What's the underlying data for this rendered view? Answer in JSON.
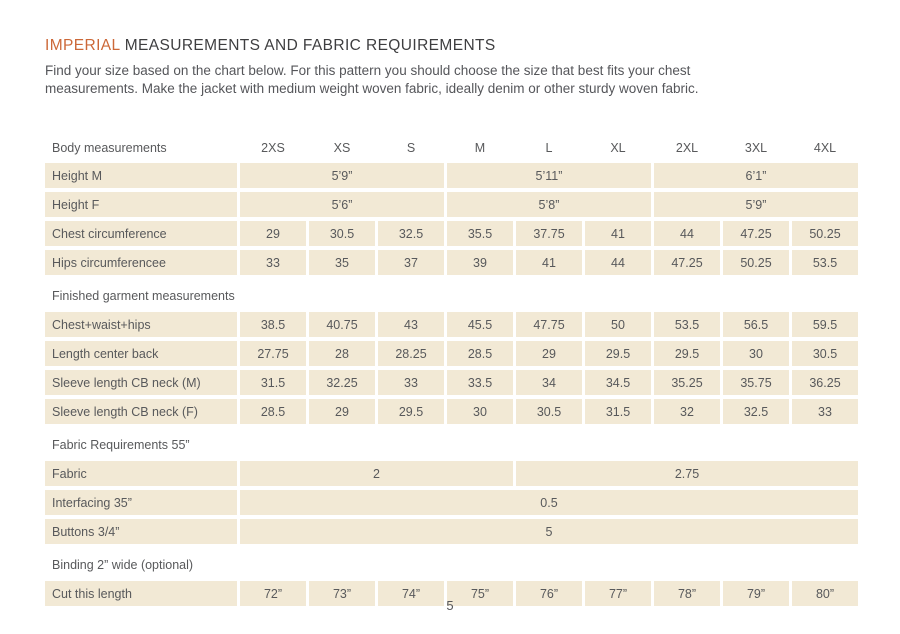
{
  "colors": {
    "accent_orange": "#cc6838",
    "cell_background": "#f2e9d5",
    "table_text": "#58595b",
    "heading_dark": "#3e3e40",
    "page_background": "#ffffff"
  },
  "header": {
    "title_highlight": "IMPERIAL",
    "title_rest": "MEASUREMENTS AND FABRIC REQUIREMENTS",
    "intro_line1": "Find your size based on the chart below. For this pattern you should choose the size that best fits your chest",
    "intro_line2": "measurements. Make the jacket with medium weight woven fabric, ideally denim or other sturdy woven fabric."
  },
  "footer": {
    "page_number": "5"
  },
  "table": {
    "corner_label": "Body measurements",
    "size_columns": [
      "2XS",
      "XS",
      "S",
      "M",
      "L",
      "XL",
      "2XL",
      "3XL",
      "4XL"
    ],
    "rows": [
      {
        "kind": "data",
        "label": "Height M",
        "cells": [
          {
            "span": 3,
            "value": "5’9”"
          },
          {
            "span": 3,
            "value": "5’11”"
          },
          {
            "span": 3,
            "value": "6’1”"
          }
        ]
      },
      {
        "kind": "data",
        "label": "Height F",
        "cells": [
          {
            "span": 3,
            "value": "5’6”"
          },
          {
            "span": 3,
            "value": "5’8”"
          },
          {
            "span": 3,
            "value": "5’9”"
          }
        ]
      },
      {
        "kind": "data",
        "label": "Chest circumference",
        "cells": [
          {
            "span": 1,
            "value": "29"
          },
          {
            "span": 1,
            "value": "30.5"
          },
          {
            "span": 1,
            "value": "32.5"
          },
          {
            "span": 1,
            "value": "35.5"
          },
          {
            "span": 1,
            "value": "37.75"
          },
          {
            "span": 1,
            "value": "41"
          },
          {
            "span": 1,
            "value": "44"
          },
          {
            "span": 1,
            "value": "47.25"
          },
          {
            "span": 1,
            "value": "50.25"
          }
        ]
      },
      {
        "kind": "data",
        "label": "Hips circumferencee",
        "cells": [
          {
            "span": 1,
            "value": "33"
          },
          {
            "span": 1,
            "value": "35"
          },
          {
            "span": 1,
            "value": "37"
          },
          {
            "span": 1,
            "value": "39"
          },
          {
            "span": 1,
            "value": "41"
          },
          {
            "span": 1,
            "value": "44"
          },
          {
            "span": 1,
            "value": "47.25"
          },
          {
            "span": 1,
            "value": "50.25"
          },
          {
            "span": 1,
            "value": "53.5"
          }
        ]
      },
      {
        "kind": "section",
        "label": "Finished garment measurements"
      },
      {
        "kind": "data",
        "label": "Chest+waist+hips",
        "cells": [
          {
            "span": 1,
            "value": "38.5"
          },
          {
            "span": 1,
            "value": "40.75"
          },
          {
            "span": 1,
            "value": "43"
          },
          {
            "span": 1,
            "value": "45.5"
          },
          {
            "span": 1,
            "value": "47.75"
          },
          {
            "span": 1,
            "value": "50"
          },
          {
            "span": 1,
            "value": "53.5"
          },
          {
            "span": 1,
            "value": "56.5"
          },
          {
            "span": 1,
            "value": "59.5"
          }
        ]
      },
      {
        "kind": "data",
        "label": "Length center back",
        "cells": [
          {
            "span": 1,
            "value": "27.75"
          },
          {
            "span": 1,
            "value": "28"
          },
          {
            "span": 1,
            "value": "28.25"
          },
          {
            "span": 1,
            "value": "28.5"
          },
          {
            "span": 1,
            "value": "29"
          },
          {
            "span": 1,
            "value": "29.5"
          },
          {
            "span": 1,
            "value": "29.5"
          },
          {
            "span": 1,
            "value": "30"
          },
          {
            "span": 1,
            "value": "30.5"
          }
        ]
      },
      {
        "kind": "data",
        "label": "Sleeve length CB neck (M)",
        "cells": [
          {
            "span": 1,
            "value": "31.5"
          },
          {
            "span": 1,
            "value": "32.25"
          },
          {
            "span": 1,
            "value": "33"
          },
          {
            "span": 1,
            "value": "33.5"
          },
          {
            "span": 1,
            "value": "34"
          },
          {
            "span": 1,
            "value": "34.5"
          },
          {
            "span": 1,
            "value": "35.25"
          },
          {
            "span": 1,
            "value": "35.75"
          },
          {
            "span": 1,
            "value": "36.25"
          }
        ]
      },
      {
        "kind": "data",
        "label": "Sleeve length CB neck (F)",
        "cells": [
          {
            "span": 1,
            "value": "28.5"
          },
          {
            "span": 1,
            "value": "29"
          },
          {
            "span": 1,
            "value": "29.5"
          },
          {
            "span": 1,
            "value": "30"
          },
          {
            "span": 1,
            "value": "30.5"
          },
          {
            "span": 1,
            "value": "31.5"
          },
          {
            "span": 1,
            "value": "32"
          },
          {
            "span": 1,
            "value": "32.5"
          },
          {
            "span": 1,
            "value": "33"
          }
        ]
      },
      {
        "kind": "section",
        "label": "Fabric Requirements 55”"
      },
      {
        "kind": "data",
        "label": "Fabric",
        "cells": [
          {
            "span": 4,
            "value": "2"
          },
          {
            "span": 5,
            "value": "2.75"
          }
        ]
      },
      {
        "kind": "data",
        "label": "Interfacing 35”",
        "cells": [
          {
            "span": 9,
            "value": "0.5"
          }
        ]
      },
      {
        "kind": "data",
        "label": "Buttons 3/4”",
        "cells": [
          {
            "span": 9,
            "value": "5"
          }
        ]
      },
      {
        "kind": "section",
        "label": "Binding 2” wide (optional)"
      },
      {
        "kind": "data",
        "label": "Cut this length",
        "cells": [
          {
            "span": 1,
            "value": "72”"
          },
          {
            "span": 1,
            "value": "73”"
          },
          {
            "span": 1,
            "value": "74”"
          },
          {
            "span": 1,
            "value": "75”"
          },
          {
            "span": 1,
            "value": "76”"
          },
          {
            "span": 1,
            "value": "77”"
          },
          {
            "span": 1,
            "value": "78”"
          },
          {
            "span": 1,
            "value": "79”"
          },
          {
            "span": 1,
            "value": "80”"
          }
        ]
      }
    ]
  }
}
